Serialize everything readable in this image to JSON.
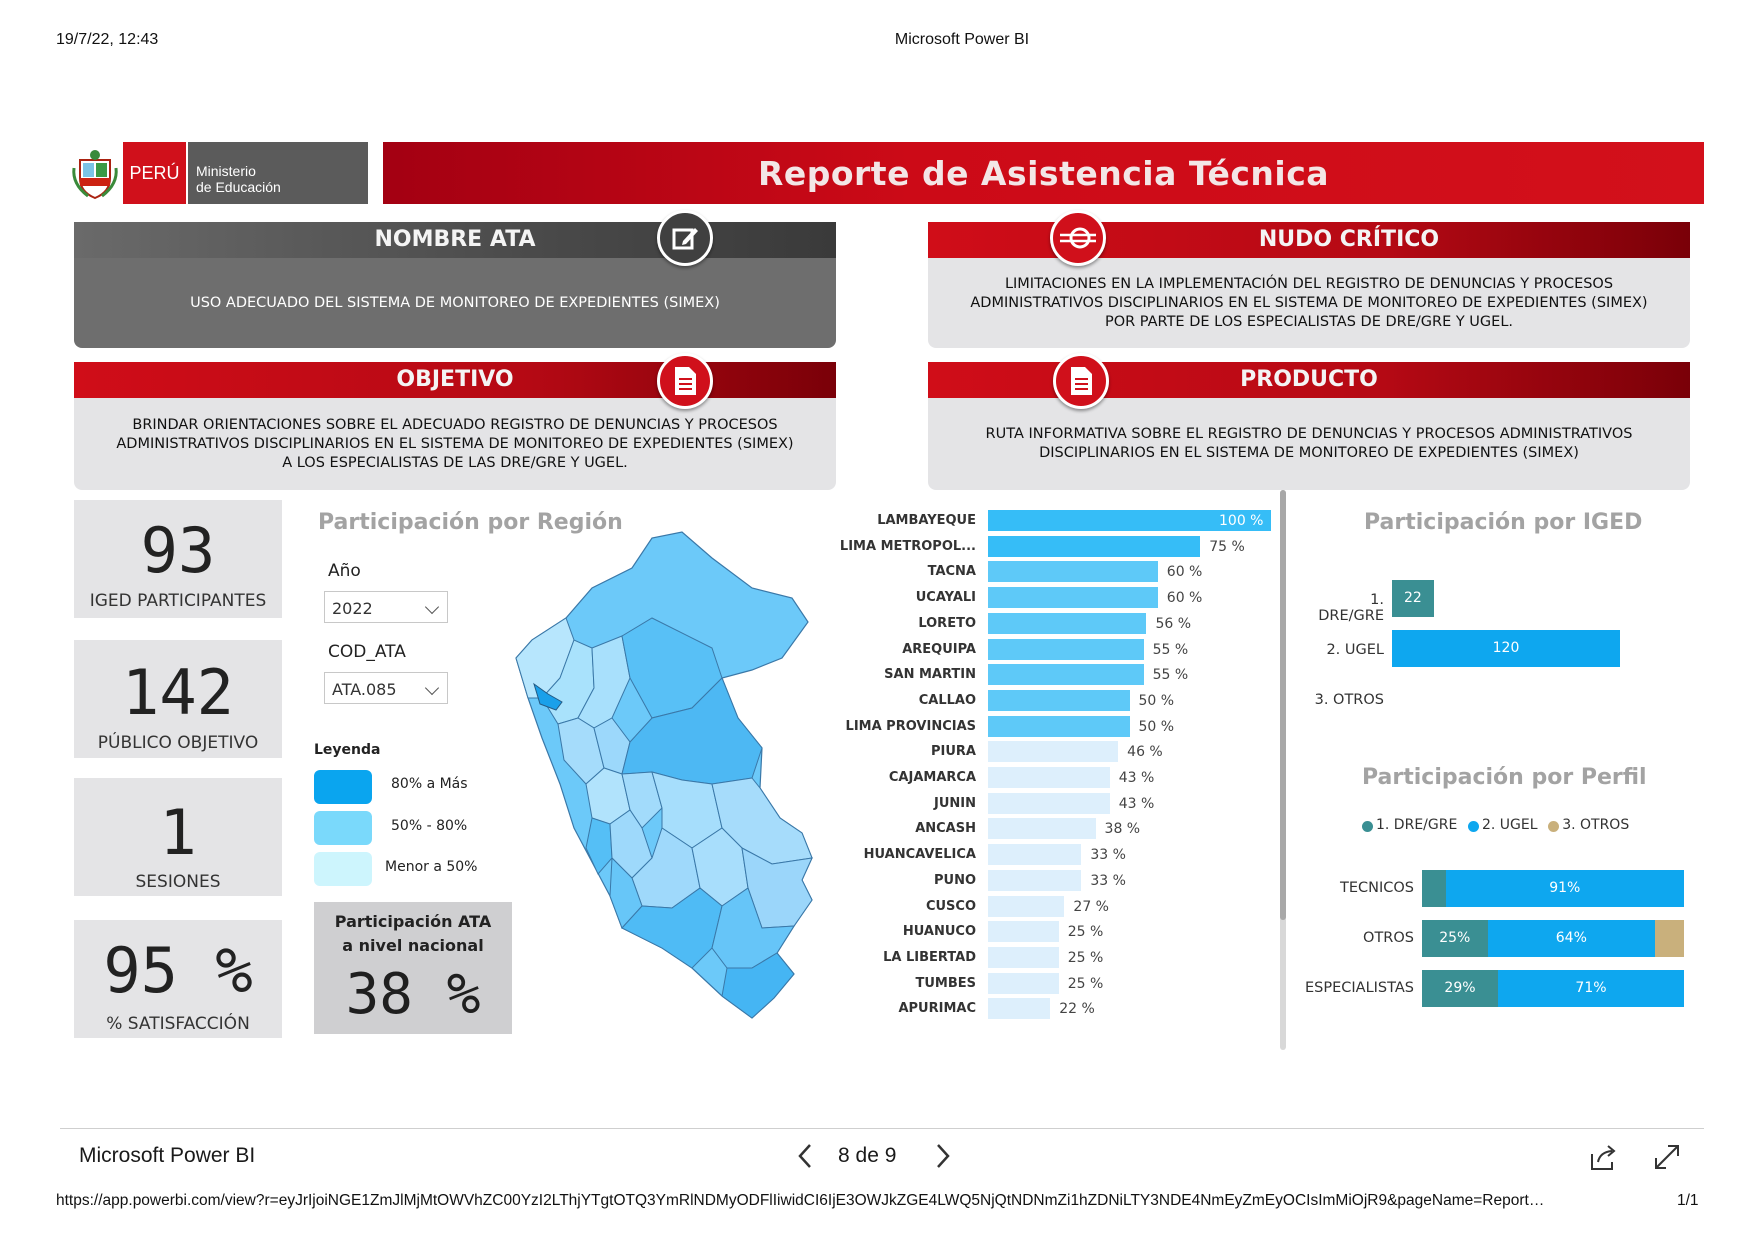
{
  "print_header": {
    "datetime": "19/7/22, 12:43",
    "title": "Microsoft Power BI"
  },
  "brand": {
    "peru": "PERÚ",
    "ministry_line1": "Ministerio",
    "ministry_line2": "de Educación"
  },
  "report_title": "Reporte de Asistencia Técnica",
  "nombre_ata": {
    "header": "NOMBRE ATA",
    "text": "USO ADECUADO DEL SISTEMA DE MONITOREO DE EXPEDIENTES (SIMEX)"
  },
  "nudo_critico": {
    "header": "NUDO CRÍTICO",
    "line1": "LIMITACIONES EN LA IMPLEMENTACIÓN DEL REGISTRO DE DENUNCIAS Y PROCESOS",
    "line2": "ADMINISTRATIVOS DISCIPLINARIOS EN EL SISTEMA DE MONITOREO DE EXPEDIENTES (SIMEX)",
    "line3": "POR PARTE DE LOS ESPECIALISTAS DE DRE/GRE Y UGEL."
  },
  "objetivo": {
    "header": "OBJETIVO",
    "line1": "BRINDAR ORIENTACIONES SOBRE EL ADECUADO REGISTRO DE DENUNCIAS Y PROCESOS",
    "line2": "ADMINISTRATIVOS DISCIPLINARIOS EN EL SISTEMA DE MONITOREO DE EXPEDIENTES (SIMEX)",
    "line3": "A LOS ESPECIALISTAS DE LAS DRE/GRE Y UGEL."
  },
  "producto": {
    "header": "PRODUCTO",
    "line1": "RUTA INFORMATIVA SOBRE EL REGISTRO DE DENUNCIAS Y PROCESOS ADMINISTRATIVOS",
    "line2": "DISCIPLINARIOS EN EL SISTEMA DE MONITOREO DE EXPEDIENTES (SIMEX)"
  },
  "kpis": [
    {
      "value": "93",
      "label": "IGED PARTICIPANTES"
    },
    {
      "value": "142",
      "label": "PÚBLICO OBJETIVO"
    },
    {
      "value": "1",
      "label": "SESIONES"
    },
    {
      "value": "95 %",
      "label": "% SATISFACCIÓN"
    }
  ],
  "region_section": {
    "title": "Participación por Región"
  },
  "filters": {
    "year_label": "Año",
    "year_value": "2022",
    "cod_label": "COD_ATA",
    "cod_value": "ATA.085"
  },
  "legend": {
    "title": "Leyenda",
    "items": [
      {
        "label": "80% a Más",
        "color": "#0aa5ef"
      },
      {
        "label": "50% - 80%",
        "color": "#7ad9fb"
      },
      {
        "label": "Menor  a 50%",
        "color": "#cdf5fd"
      }
    ]
  },
  "national": {
    "title_line1": "Participación ATA",
    "title_line2": "a nivel nacional",
    "value": "38 %"
  },
  "region_bars": {
    "colors": {
      "high": "#36bdf7",
      "mid": "#5ec9f8",
      "low": "#ddeffc"
    },
    "items": [
      {
        "region": "LAMBAYEQUE",
        "value": 100,
        "label": "100 %"
      },
      {
        "region": "LIMA METROPOL...",
        "value": 75,
        "label": "75 %"
      },
      {
        "region": "TACNA",
        "value": 60,
        "label": "60 %"
      },
      {
        "region": "UCAYALI",
        "value": 60,
        "label": "60 %"
      },
      {
        "region": "LORETO",
        "value": 56,
        "label": "56 %"
      },
      {
        "region": "AREQUIPA",
        "value": 55,
        "label": "55 %"
      },
      {
        "region": "SAN MARTIN",
        "value": 55,
        "label": "55 %"
      },
      {
        "region": "CALLAO",
        "value": 50,
        "label": "50 %"
      },
      {
        "region": "LIMA PROVINCIAS",
        "value": 50,
        "label": "50 %"
      },
      {
        "region": "PIURA",
        "value": 46,
        "label": "46 %"
      },
      {
        "region": "CAJAMARCA",
        "value": 43,
        "label": "43 %"
      },
      {
        "region": "JUNIN",
        "value": 43,
        "label": "43 %"
      },
      {
        "region": "ANCASH",
        "value": 38,
        "label": "38 %"
      },
      {
        "region": "HUANCAVELICA",
        "value": 33,
        "label": "33 %"
      },
      {
        "region": "PUNO",
        "value": 33,
        "label": "33 %"
      },
      {
        "region": "CUSCO",
        "value": 27,
        "label": "27 %"
      },
      {
        "region": "HUANUCO",
        "value": 25,
        "label": "25 %"
      },
      {
        "region": "LA LIBERTAD",
        "value": 25,
        "label": "25 %"
      },
      {
        "region": "TUMBES",
        "value": 25,
        "label": "25 %"
      },
      {
        "region": "APURIMAC",
        "value": 22,
        "label": "22 %"
      }
    ]
  },
  "iged_chart": {
    "title": "Participación por IGED",
    "items": [
      {
        "label": "1. DRE/GRE",
        "value": 22,
        "color": "#3a8f93"
      },
      {
        "label": "2. UGEL",
        "value": 120,
        "color": "#0ea7ef"
      },
      {
        "label": "3. OTROS",
        "value": 0,
        "color": "#c9b07c"
      }
    ]
  },
  "perfil_chart": {
    "title": "Participación por Perfil",
    "legend": [
      {
        "label": "1. DRE/GRE",
        "color": "#3a8f93"
      },
      {
        "label": "2. UGEL",
        "color": "#0ea7ef"
      },
      {
        "label": "3. OTROS",
        "color": "#c9b07c"
      }
    ],
    "rows": [
      {
        "label": "TECNICOS",
        "segments": [
          {
            "value": 9,
            "text": ""
          },
          {
            "value": 91,
            "text": "91%"
          },
          {
            "value": 0,
            "text": ""
          }
        ]
      },
      {
        "label": "OTROS",
        "segments": [
          {
            "value": 25,
            "text": "25%"
          },
          {
            "value": 64,
            "text": "64%"
          },
          {
            "value": 11,
            "text": ""
          }
        ]
      },
      {
        "label": "ESPECIALISTAS",
        "segments": [
          {
            "value": 29,
            "text": "29%"
          },
          {
            "value": 71,
            "text": "71%"
          },
          {
            "value": 0,
            "text": ""
          }
        ]
      }
    ]
  },
  "pbi_footer": {
    "brand": "Microsoft Power BI",
    "pager": "8 de 9"
  },
  "print_footer": {
    "url": "https://app.powerbi.com/view?r=eyJrIjoiNGE1ZmJlMjMtOWVhZC00YzI2LThjYTgtOTQ3YmRlNDMyODFlIiwidCI6IjE3OWJkZGE4LWQ5NjQtNDNmZi1hZDNiLTY3NDE4NmEyZmEyOCIsImMiOjR9&pageName=Report…",
    "page": "1/1"
  }
}
